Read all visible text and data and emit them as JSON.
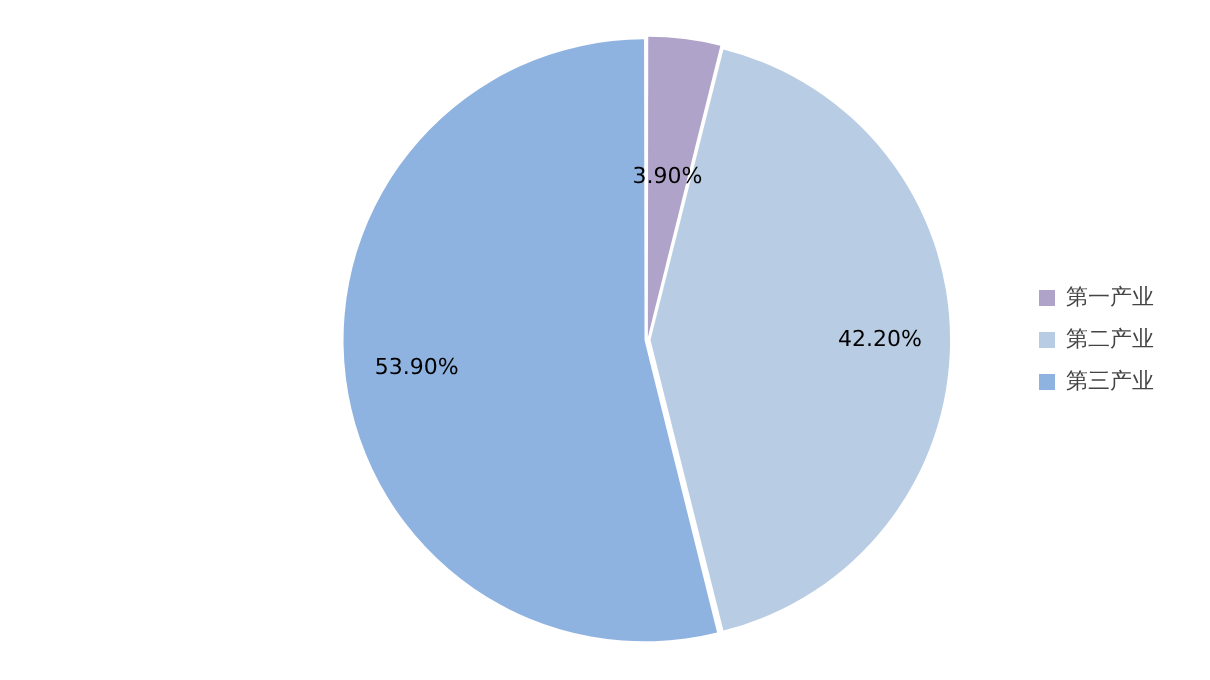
{
  "chart_data": {
    "type": "pie",
    "categories": [
      "第一产业",
      "第二产业",
      "第三产业"
    ],
    "values": [
      3.9,
      42.2,
      53.9
    ],
    "colors": [
      "#b0a3c9",
      "#b8cce4",
      "#8fb3e0"
    ],
    "value_labels": [
      "3.90%",
      "42.20%",
      "53.90%"
    ],
    "legend": "right"
  }
}
